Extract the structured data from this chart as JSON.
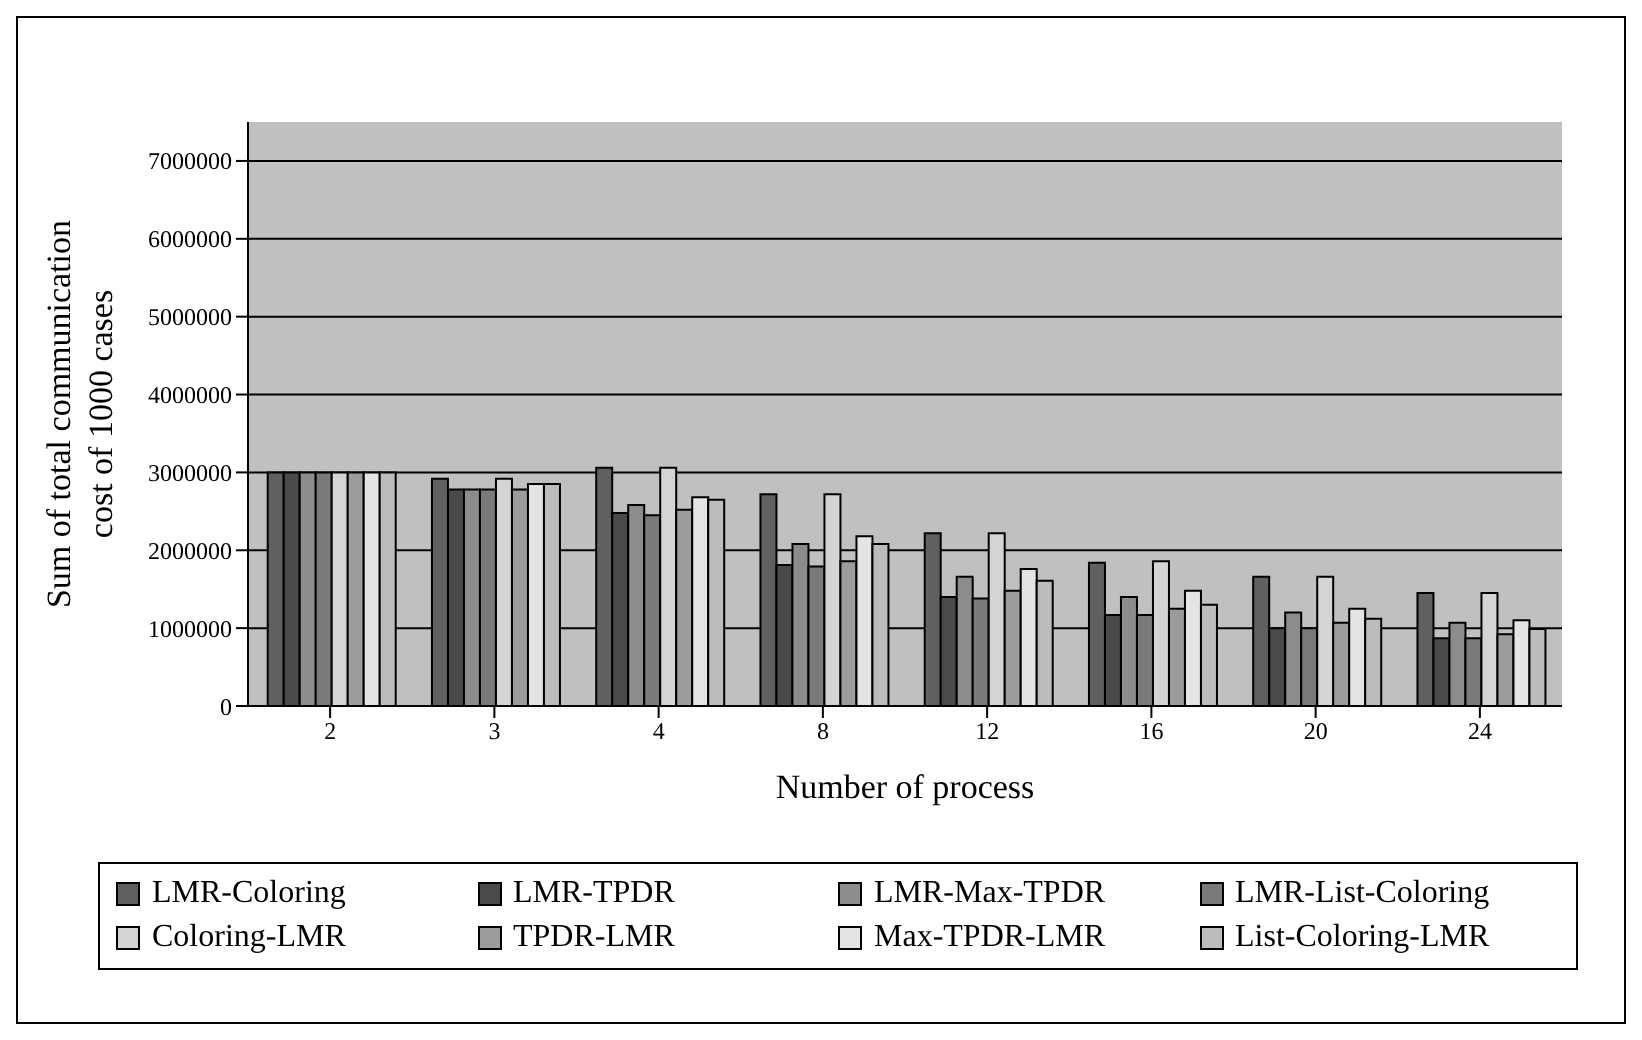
{
  "chart_data": {
    "type": "bar",
    "xlabel": "Number of process",
    "ylabel": "Sum of total communication cost of 1000 cases",
    "categories": [
      "2",
      "3",
      "4",
      "8",
      "12",
      "16",
      "20",
      "24"
    ],
    "series": [
      {
        "name": "LMR-Coloring",
        "color": "#606060",
        "values": [
          3000000,
          2920000,
          3060000,
          2720000,
          2220000,
          1840000,
          1660000,
          1450000
        ]
      },
      {
        "name": "LMR-TPDR",
        "color": "#4a4a4a",
        "values": [
          3000000,
          2780000,
          2480000,
          1810000,
          1400000,
          1170000,
          1000000,
          870000
        ]
      },
      {
        "name": "LMR-Max-TPDR",
        "color": "#8c8c8c",
        "values": [
          3000000,
          2780000,
          2580000,
          2080000,
          1660000,
          1400000,
          1200000,
          1070000
        ]
      },
      {
        "name": "LMR-List-Coloring",
        "color": "#7a7a7a",
        "values": [
          3000000,
          2780000,
          2450000,
          1790000,
          1380000,
          1170000,
          1000000,
          870000
        ]
      },
      {
        "name": "Coloring-LMR",
        "color": "#d4d4d4",
        "values": [
          3000000,
          2920000,
          3060000,
          2720000,
          2220000,
          1860000,
          1660000,
          1450000
        ]
      },
      {
        "name": "TPDR-LMR",
        "color": "#9c9c9c",
        "values": [
          3000000,
          2780000,
          2520000,
          1860000,
          1480000,
          1250000,
          1070000,
          920000
        ]
      },
      {
        "name": "Max-TPDR-LMR",
        "color": "#e4e4e4",
        "values": [
          3000000,
          2850000,
          2680000,
          2180000,
          1760000,
          1480000,
          1250000,
          1100000
        ]
      },
      {
        "name": "List-Coloring-LMR",
        "color": "#bcbcbc",
        "values": [
          3000000,
          2850000,
          2650000,
          2080000,
          1610000,
          1300000,
          1120000,
          990000
        ]
      }
    ],
    "ylim": [
      0,
      7500000
    ],
    "yticks": [
      0,
      1000000,
      2000000,
      3000000,
      4000000,
      5000000,
      6000000,
      7000000
    ],
    "grid": "y",
    "legend": "bottom"
  }
}
